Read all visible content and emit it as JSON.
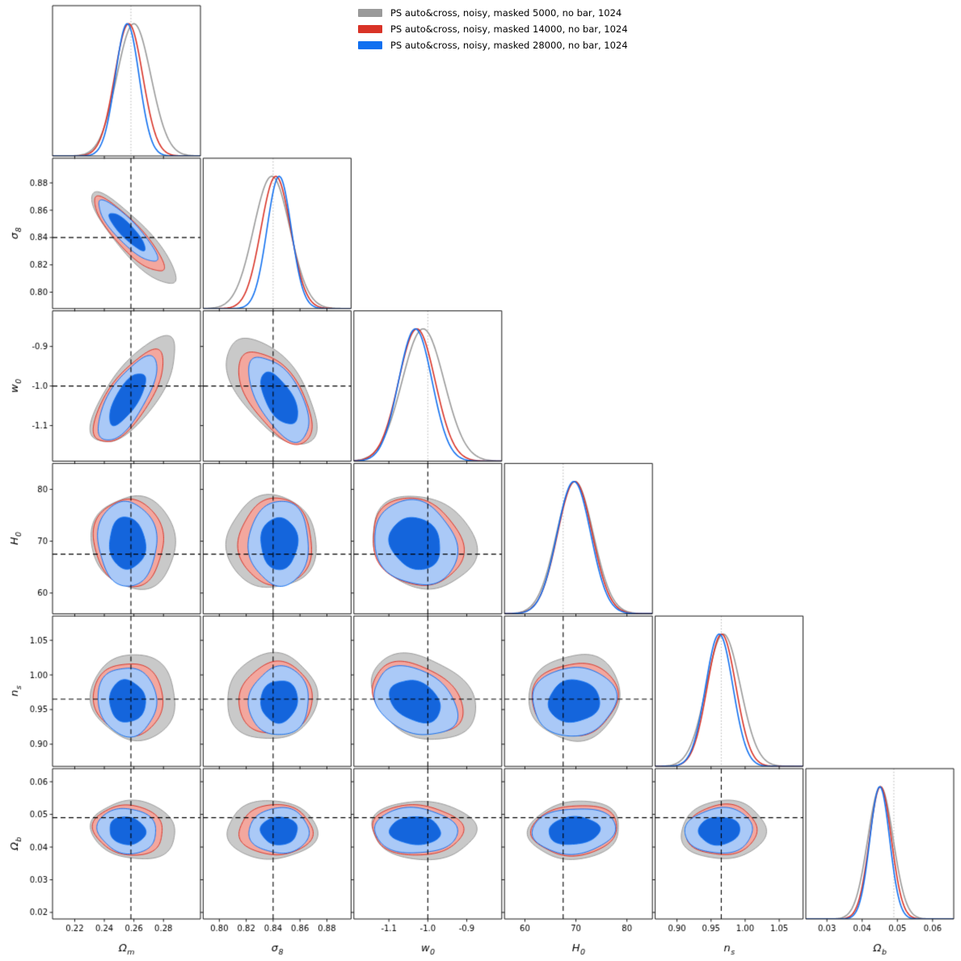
{
  "legend": {
    "position": "top-center",
    "items": [
      {
        "label": "PS auto&cross, noisy, masked 5000, no bar, 1024",
        "color": "#9a9a9a"
      },
      {
        "label": "PS auto&cross, noisy, masked 14000, no bar, 1024",
        "color": "#d93327"
      },
      {
        "label": "PS auto&cross, noisy, masked 28000, no bar, 1024",
        "color": "#1170f0"
      }
    ]
  },
  "chart_data": {
    "type": "corner-triangle-contour",
    "description": "Triangle (corner) plot of cosmological posterior constraints; diagonal = 1D marginals, lower triangle = filled 68%/95% 2D contours; dashed black lines mark fiducial truth values.",
    "contour_levels": [
      0.68,
      0.95
    ],
    "grid": false,
    "parameters": [
      {
        "id": "omega_m",
        "label": "Ω",
        "subscript": "m",
        "truth": 0.258,
        "range": [
          0.205,
          0.305
        ],
        "ticks": [
          0.22,
          0.24,
          0.26,
          0.28
        ],
        "tick_format": 2
      },
      {
        "id": "sigma_8",
        "label": "σ",
        "subscript": "8",
        "truth": 0.84,
        "range": [
          0.788,
          0.898
        ],
        "ticks": [
          0.8,
          0.82,
          0.84,
          0.86,
          0.88
        ],
        "tick_format": 2
      },
      {
        "id": "w_0",
        "label": "w",
        "subscript": "0",
        "truth": -1.0,
        "range": [
          -1.19,
          -0.81
        ],
        "ticks": [
          -1.1,
          -1.0,
          -0.9
        ],
        "tick_format": 1
      },
      {
        "id": "H_0",
        "label": "H",
        "subscript": "0",
        "truth": 67.5,
        "range": [
          56,
          85
        ],
        "ticks": [
          60,
          70,
          80
        ],
        "tick_format": 0
      },
      {
        "id": "n_s",
        "label": "n",
        "subscript": "s",
        "truth": 0.965,
        "range": [
          0.868,
          1.085
        ],
        "ticks": [
          0.9,
          0.95,
          1.0,
          1.05
        ],
        "tick_format": 2
      },
      {
        "id": "omega_b",
        "label": "Ω",
        "subscript": "b",
        "truth": 0.049,
        "range": [
          0.024,
          0.066
        ],
        "y_range": [
          0.018,
          0.064
        ],
        "ticks": [
          0.03,
          0.04,
          0.05,
          0.06
        ],
        "y_ticks": [
          0.02,
          0.03,
          0.04,
          0.05,
          0.06
        ],
        "tick_format": 2
      }
    ],
    "series": [
      {
        "name": "PS auto&cross, noisy, masked 5000, no bar, 1024",
        "line": "#9a9a9a",
        "fill_outer": "#c9c9c9",
        "fill_inner": "#a5a5a5",
        "means": [
          0.26,
          0.839,
          -1.012,
          69.8,
          0.968,
          0.0452
        ],
        "sigmas": [
          0.0115,
          0.0135,
          0.054,
          3.6,
          0.025,
          0.0036
        ]
      },
      {
        "name": "PS auto&cross, noisy, masked 14000, no bar, 1024",
        "line": "#d93327",
        "fill_outer": "#f3a79e",
        "fill_inner": "#e23a28",
        "means": [
          0.2565,
          0.842,
          -1.028,
          69.8,
          0.9655,
          0.0452
        ],
        "sigmas": [
          0.0095,
          0.011,
          0.047,
          3.4,
          0.021,
          0.0031
        ]
      },
      {
        "name": "PS auto&cross, noisy, masked 28000, no bar, 1024",
        "line": "#1170f0",
        "fill_outer": "#aac9f7",
        "fill_inner": "#1465dc",
        "means": [
          0.2555,
          0.8445,
          -1.032,
          69.6,
          0.962,
          0.045
        ],
        "sigmas": [
          0.008,
          0.009,
          0.043,
          3.3,
          0.02,
          0.0028
        ]
      }
    ],
    "correlations": [
      [],
      [
        -0.87
      ],
      [
        0.72,
        -0.6
      ],
      [
        -0.05,
        0.0,
        -0.15
      ],
      [
        -0.05,
        0.05,
        -0.3,
        0.05
      ],
      [
        -0.1,
        0.0,
        -0.05,
        0.1,
        0.05
      ]
    ]
  }
}
